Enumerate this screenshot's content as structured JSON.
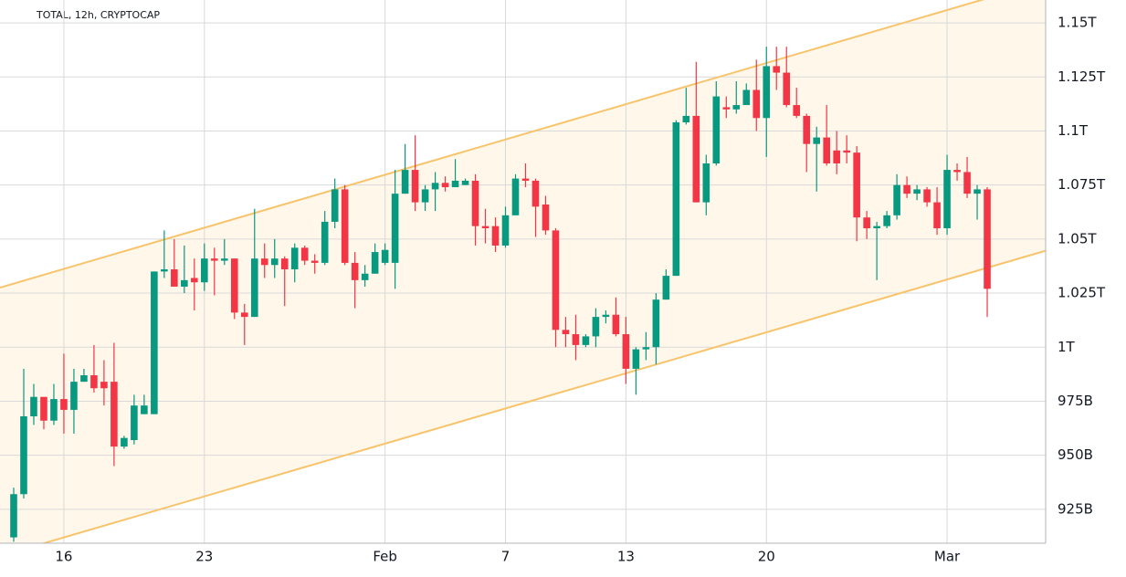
{
  "chart_data": {
    "type": "candlestick",
    "title": "TOTAL, 12h, CRYPTOCAP",
    "categories": [
      null,
      null,
      null,
      null,
      null,
      "16",
      null,
      null,
      null,
      null,
      null,
      null,
      null,
      null,
      null,
      null,
      null,
      null,
      null,
      "23",
      null,
      null,
      null,
      null,
      null,
      null,
      null,
      null,
      null,
      null,
      null,
      null,
      null,
      null,
      null,
      null,
      null,
      "Feb",
      null,
      null,
      null,
      null,
      null,
      null,
      null,
      null,
      null,
      null,
      null,
      "7",
      null,
      null,
      null,
      null,
      null,
      null,
      null,
      null,
      null,
      null,
      null,
      "13",
      null,
      null,
      null,
      null,
      null,
      null,
      null,
      null,
      null,
      null,
      null,
      null,
      null,
      "20",
      null,
      null,
      null,
      null,
      null,
      null,
      null,
      null,
      null,
      null,
      null,
      null,
      null,
      null,
      null,
      null,
      null,
      "Mar",
      null,
      null,
      null,
      null
    ],
    "open": [
      912,
      932,
      968,
      977,
      966,
      976,
      971,
      984,
      987,
      984,
      984,
      954,
      957,
      969,
      969,
      1035,
      1036,
      1028,
      1032,
      1030,
      1041,
      1040,
      1041,
      1016,
      1014,
      1041,
      1038,
      1041,
      1036,
      1046,
      1040,
      1039,
      1058,
      1073,
      1039,
      1031,
      1034,
      1039,
      1039,
      1071,
      1082,
      1067,
      1073,
      1076,
      1074,
      1075,
      1077,
      1056,
      1056,
      1047,
      1061,
      1078,
      1077,
      1066,
      1054,
      1008,
      1006,
      1001,
      1005,
      1014,
      1015,
      1006,
      990,
      999,
      1000,
      1022,
      1033,
      1104,
      1107,
      1067,
      1085,
      1111,
      1110,
      1112,
      1119,
      1106,
      1130,
      1127,
      1112,
      1107,
      1094,
      1097,
      1091,
      1091,
      1090,
      1060,
      1055,
      1056,
      1061,
      1075,
      1071,
      1073,
      1067,
      1055,
      1082,
      1081,
      1071,
      1073
    ],
    "close": [
      932,
      968,
      977,
      966,
      976,
      971,
      984,
      987,
      981,
      981,
      954,
      958,
      973,
      973,
      1035,
      1036,
      1028,
      1031,
      1030,
      1041,
      1040,
      1041,
      1016,
      1014,
      1041,
      1038,
      1041,
      1036,
      1046,
      1040,
      1039,
      1058,
      1073,
      1039,
      1031,
      1034,
      1044,
      1045,
      1071,
      1082,
      1067,
      1073,
      1076,
      1074,
      1077,
      1077,
      1056,
      1055,
      1047,
      1061,
      1078,
      1077,
      1065,
      1054,
      1008,
      1006,
      1001,
      1005,
      1014,
      1015,
      1006,
      990,
      999,
      1000,
      1022,
      1033,
      1104,
      1107,
      1067,
      1085,
      1116,
      1110,
      1112,
      1119,
      1106,
      1130,
      1127,
      1112,
      1107,
      1094,
      1097,
      1085,
      1085,
      1090,
      1060,
      1055,
      1056,
      1061,
      1075,
      1071,
      1073,
      1067,
      1055,
      1082,
      1081,
      1071,
      1073,
      1027
    ],
    "high": [
      935,
      990,
      983,
      975,
      983,
      997,
      990,
      990,
      1001,
      994,
      1002,
      959,
      978,
      978,
      1035,
      1054,
      1050,
      1047,
      1041,
      1048,
      1046,
      1050,
      1041,
      1020,
      1064,
      1048,
      1050,
      1042,
      1048,
      1047,
      1043,
      1063,
      1078,
      1075,
      1044,
      1038,
      1048,
      1048,
      1082,
      1094,
      1098,
      1075,
      1081,
      1079,
      1087,
      1078,
      1080,
      1064,
      1060,
      1065,
      1080,
      1085,
      1078,
      1070,
      1055,
      1014,
      1015,
      1006,
      1018,
      1017,
      1023,
      1014,
      1000,
      1007,
      1025,
      1036,
      1105,
      1120,
      1132,
      1089,
      1123,
      1116,
      1123,
      1122,
      1133,
      1139,
      1139,
      1139,
      1120,
      1108,
      1102,
      1112,
      1100,
      1098,
      1093,
      1063,
      1058,
      1063,
      1080,
      1079,
      1075,
      1074,
      1074,
      1089,
      1085,
      1088,
      1075,
      1074
    ],
    "low": [
      910,
      930,
      964,
      962,
      964,
      960,
      960,
      984,
      979,
      973,
      945,
      953,
      955,
      969,
      969,
      1032,
      1028,
      1025,
      1017,
      1026,
      1024,
      1038,
      1013,
      1001,
      1014,
      1032,
      1032,
      1019,
      1030,
      1038,
      1034,
      1038,
      1055,
      1038,
      1018,
      1028,
      1034,
      1038,
      1027,
      1071,
      1063,
      1063,
      1063,
      1072,
      1074,
      1075,
      1047,
      1048,
      1044,
      1046,
      1061,
      1074,
      1051,
      1052,
      1000,
      1000,
      994,
      1000,
      1000,
      1011,
      1005,
      983,
      978,
      994,
      992,
      1022,
      1033,
      1103,
      1067,
      1061,
      1084,
      1106,
      1108,
      1114,
      1100,
      1088,
      1119,
      1111,
      1106,
      1081,
      1072,
      1084,
      1080,
      1085,
      1049,
      1050,
      1031,
      1055,
      1059,
      1069,
      1068,
      1065,
      1052,
      1052,
      1077,
      1069,
      1059,
      1014
    ],
    "up_color": "#089981",
    "down_color": "#f23645",
    "channel": {
      "upper": [
        1029.4,
        1161.4
      ],
      "lower": [
        905.2,
        1036.7
      ],
      "color": "#f7c46c",
      "fill": "#fff7ea"
    },
    "ylim": [
      909.3,
      1160.6
    ],
    "yticks": [
      {
        "value": 925,
        "label": "925B"
      },
      {
        "value": 950,
        "label": "950B"
      },
      {
        "value": 975,
        "label": "975B"
      },
      {
        "value": 1000,
        "label": "1T"
      },
      {
        "value": 1025,
        "label": "1.025T"
      },
      {
        "value": 1050,
        "label": "1.05T"
      },
      {
        "value": 1075,
        "label": "1.075T"
      },
      {
        "value": 1100,
        "label": "1.1T"
      },
      {
        "value": 1125,
        "label": "1.125T"
      },
      {
        "value": 1150,
        "label": "1.15T"
      }
    ],
    "grid": true
  }
}
